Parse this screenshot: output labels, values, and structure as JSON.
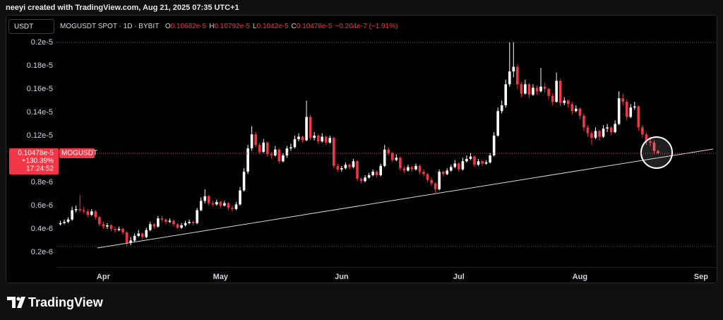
{
  "header": {
    "credit": "neeyi created with TradingView.com, Aug 21, 2025 07:35 UTC+1"
  },
  "footer": {
    "brand": "TradingView"
  },
  "chart_data": {
    "type": "candlestick",
    "currency": "USDT",
    "legend": {
      "symbol": "MOGUSDT SPOT · 1D · BYBIT",
      "items": [
        {
          "key": "O",
          "value": "0.10682e-5"
        },
        {
          "key": "H",
          "value": "0.10792e-5"
        },
        {
          "key": "L",
          "value": "0.1042e-5"
        },
        {
          "key": "C",
          "value": "0.10478e-5"
        }
      ],
      "change": "−0.204e-7 (−1.91%)"
    },
    "price_tag": {
      "price": "0.10478e-5",
      "change": "+130.39%",
      "countdown": "17:24:52",
      "symbol": "MOGUSDT"
    },
    "up_color": "#ffffff",
    "down_color": "#f23645",
    "xlim": [
      -1,
      168
    ],
    "xticks": [
      {
        "value": 11,
        "label": "Apr"
      },
      {
        "value": 41,
        "label": "May"
      },
      {
        "value": 72,
        "label": "Jun"
      },
      {
        "value": 102,
        "label": "Jul"
      },
      {
        "value": 133,
        "label": "Aug"
      },
      {
        "value": 164,
        "label": "Sep"
      }
    ],
    "ylim": [
      9.1e-08,
      2.09e-06
    ],
    "yticks": [
      {
        "value": 2e-06,
        "label": "0.2e-5"
      },
      {
        "value": 1.8e-06,
        "label": "0.18e-5"
      },
      {
        "value": 1.6e-06,
        "label": "0.16e-5"
      },
      {
        "value": 1.4e-06,
        "label": "0.14e-5"
      },
      {
        "value": 1.2e-06,
        "label": "0.12e-5"
      },
      {
        "value": 8e-07,
        "label": "0.8e-6"
      },
      {
        "value": 6e-07,
        "label": "0.6e-6"
      },
      {
        "value": 4e-07,
        "label": "0.4e-6"
      },
      {
        "value": 2e-07,
        "label": "0.2e-6"
      }
    ],
    "grid": false,
    "candles": [
      [
        4.4e-07,
        4.7e-07,
        4.3e-07,
        4.5e-07
      ],
      [
        4.5e-07,
        4.8e-07,
        4.4e-07,
        4.6e-07
      ],
      [
        4.6e-07,
        5e-07,
        4.5e-07,
        4.8e-07
      ],
      [
        4.8e-07,
        5.9e-07,
        4.7e-07,
        5.6e-07
      ],
      [
        5.6e-07,
        6e-07,
        5.4e-07,
        5.7e-07
      ],
      [
        5.7e-07,
        6.9e-07,
        5.4e-07,
        5.6e-07
      ],
      [
        5.6e-07,
        5.9e-07,
        5.3e-07,
        5.5e-07
      ],
      [
        5.5e-07,
        5.7e-07,
        5e-07,
        5.2e-07
      ],
      [
        5.2e-07,
        5.7e-07,
        5.1e-07,
        5.5e-07
      ],
      [
        5.5e-07,
        5.6e-07,
        4.8e-07,
        5e-07
      ],
      [
        5e-07,
        5.1e-07,
        4.2e-07,
        4.4e-07
      ],
      [
        4.4e-07,
        4.6e-07,
        4e-07,
        4.2e-07
      ],
      [
        4.2e-07,
        4.5e-07,
        4e-07,
        4.3e-07
      ],
      [
        4.3e-07,
        4.4e-07,
        3.8e-07,
        4e-07
      ],
      [
        4e-07,
        4.2e-07,
        3.7e-07,
        3.9e-07
      ],
      [
        3.9e-07,
        4.2e-07,
        3.8e-07,
        4e-07
      ],
      [
        4e-07,
        4.1e-07,
        3.5e-07,
        3.7e-07
      ],
      [
        3.7e-07,
        3.8e-07,
        2.5e-07,
        2.8e-07
      ],
      [
        2.8e-07,
        3.3e-07,
        2.6e-07,
        3e-07
      ],
      [
        3e-07,
        3.6e-07,
        2.9e-07,
        3.4e-07
      ],
      [
        3.4e-07,
        3.9e-07,
        3.3e-07,
        3.6e-07
      ],
      [
        3.6e-07,
        3.7e-07,
        3.1e-07,
        3.3e-07
      ],
      [
        3.3e-07,
        4.1e-07,
        3.2e-07,
        3.9e-07
      ],
      [
        3.9e-07,
        4.6e-07,
        3.8e-07,
        4.4e-07
      ],
      [
        4.4e-07,
        4.5e-07,
        4e-07,
        4.2e-07
      ],
      [
        4.2e-07,
        5.1e-07,
        4.1e-07,
        4.9e-07
      ],
      [
        4.9e-07,
        5.1e-07,
        4.6e-07,
        4.8e-07
      ],
      [
        4.8e-07,
        4.9e-07,
        4.4e-07,
        4.6e-07
      ],
      [
        4.6e-07,
        4.9e-07,
        4.5e-07,
        4.7e-07
      ],
      [
        4.7e-07,
        4.8e-07,
        4.2e-07,
        4.4e-07
      ],
      [
        4.4e-07,
        4.5e-07,
        4e-07,
        4.1e-07
      ],
      [
        4.1e-07,
        4.5e-07,
        4e-07,
        4.3e-07
      ],
      [
        4.3e-07,
        4.7e-07,
        4.2e-07,
        4.5e-07
      ],
      [
        4.5e-07,
        4.8e-07,
        4.4e-07,
        4.6e-07
      ],
      [
        4.6e-07,
        4.7e-07,
        4.3e-07,
        4.5e-07
      ],
      [
        4.5e-07,
        5.8e-07,
        4.4e-07,
        5.6e-07
      ],
      [
        5.6e-07,
        6.7e-07,
        5.5e-07,
        6.4e-07
      ],
      [
        6.4e-07,
        7.4e-07,
        6.2e-07,
        6.8e-07
      ],
      [
        6.8e-07,
        6.9e-07,
        6e-07,
        6.2e-07
      ],
      [
        6.2e-07,
        6.4e-07,
        5.9e-07,
        6.1e-07
      ],
      [
        6.1e-07,
        6.5e-07,
        6e-07,
        6.3e-07
      ],
      [
        6.3e-07,
        6.4e-07,
        5.8e-07,
        6e-07
      ],
      [
        6e-07,
        6.4e-07,
        5.9e-07,
        6.2e-07
      ],
      [
        6.2e-07,
        6.3e-07,
        5.6e-07,
        5.8e-07
      ],
      [
        5.8e-07,
        6e-07,
        5.5e-07,
        5.7e-07
      ],
      [
        5.7e-07,
        6.3e-07,
        5.6e-07,
        6.1e-07
      ],
      [
        6.1e-07,
        7.6e-07,
        6e-07,
        7.3e-07
      ],
      [
        7.3e-07,
        9.2e-07,
        7.2e-07,
        8.9e-07
      ],
      [
        8.9e-07,
        1.12e-06,
        8.7e-07,
        1.09e-06
      ],
      [
        1.09e-06,
        1.28e-06,
        1.07e-06,
        1.21e-06
      ],
      [
        1.21e-06,
        1.23e-06,
        1.1e-06,
        1.12e-06
      ],
      [
        1.12e-06,
        1.14e-06,
        1.04e-06,
        1.06e-06
      ],
      [
        1.06e-06,
        1.17e-06,
        1.05e-06,
        1.14e-06
      ],
      [
        1.14e-06,
        1.15e-06,
        1.02e-06,
        1.04e-06
      ],
      [
        1.04e-06,
        1.06e-06,
        1e-06,
        1.03e-06
      ],
      [
        1.03e-06,
        1.11e-06,
        1.02e-06,
        1.08e-06
      ],
      [
        1.08e-06,
        1.09e-06,
        9.6e-07,
        9.8e-07
      ],
      [
        9.8e-07,
        1.05e-06,
        9.7e-07,
        1.03e-06
      ],
      [
        1.03e-06,
        1.11e-06,
        1.01e-06,
        1.09e-06
      ],
      [
        1.09e-06,
        1.13e-06,
        1.07e-06,
        1.1e-06
      ],
      [
        1.1e-06,
        1.2e-06,
        1.09e-06,
        1.17e-06
      ],
      [
        1.17e-06,
        1.22e-06,
        1.15e-06,
        1.19e-06
      ],
      [
        1.19e-06,
        1.2e-06,
        1.14e-06,
        1.16e-06
      ],
      [
        1.16e-06,
        1.5e-06,
        1.15e-06,
        1.36e-06
      ],
      [
        1.36e-06,
        1.38e-06,
        1.16e-06,
        1.18e-06
      ],
      [
        1.18e-06,
        1.23e-06,
        1.16e-06,
        1.2e-06
      ],
      [
        1.2e-06,
        1.21e-06,
        1.13e-06,
        1.15e-06
      ],
      [
        1.15e-06,
        1.22e-06,
        1.14e-06,
        1.19e-06
      ],
      [
        1.19e-06,
        1.2e-06,
        1.12e-06,
        1.14e-06
      ],
      [
        1.14e-06,
        1.2e-06,
        1.13e-06,
        1.18e-06
      ],
      [
        1.18e-06,
        1.19e-06,
        9.2e-07,
        9.4e-07
      ],
      [
        9.4e-07,
        9.6e-07,
        8.9e-07,
        9.1e-07
      ],
      [
        9.1e-07,
        9.4e-07,
        8.9e-07,
        9.2e-07
      ],
      [
        9.2e-07,
        9.7e-07,
        9.1e-07,
        9.5e-07
      ],
      [
        9.5e-07,
        9.6e-07,
        9.1e-07,
        9.3e-07
      ],
      [
        9.3e-07,
        1e-06,
        9.2e-07,
        9.8e-07
      ],
      [
        9.8e-07,
        9.9e-07,
        8.1e-07,
        8.3e-07
      ],
      [
        8.3e-07,
        8.4e-07,
        7.9e-07,
        8.1e-07
      ],
      [
        8.1e-07,
        8.6e-07,
        8e-07,
        8.4e-07
      ],
      [
        8.4e-07,
        8.8e-07,
        8.3e-07,
        8.6e-07
      ],
      [
        8.6e-07,
        9.1e-07,
        8.5e-07,
        8.9e-07
      ],
      [
        8.9e-07,
        9e-07,
        8.4e-07,
        8.6e-07
      ],
      [
        8.6e-07,
        9.6e-07,
        8.5e-07,
        9.4e-07
      ],
      [
        9.4e-07,
        1.12e-06,
        9.3e-07,
        1.08e-06
      ],
      [
        1.08e-06,
        1.1e-06,
        1.03e-06,
        1.05e-06
      ],
      [
        1.05e-06,
        1.06e-06,
        9.7e-07,
        9.9e-07
      ],
      [
        9.9e-07,
        1.04e-06,
        9.8e-07,
        1.01e-06
      ],
      [
        1.01e-06,
        1.02e-06,
        9e-07,
        9.2e-07
      ],
      [
        9.2e-07,
        9.4e-07,
        8.8e-07,
        9e-07
      ],
      [
        9e-07,
        9.5e-07,
        8.9e-07,
        9.3e-07
      ],
      [
        9.3e-07,
        9.4e-07,
        8.9e-07,
        9.1e-07
      ],
      [
        9.1e-07,
        9.6e-07,
        9e-07,
        9.4e-07
      ],
      [
        9.4e-07,
        9.5e-07,
        8.7e-07,
        8.9e-07
      ],
      [
        8.9e-07,
        9.1e-07,
        8.5e-07,
        8.7e-07
      ],
      [
        8.7e-07,
        8.8e-07,
        8e-07,
        8.2e-07
      ],
      [
        8.2e-07,
        8.4e-07,
        7.7e-07,
        7.9e-07
      ],
      [
        7.9e-07,
        8e-07,
        7.1e-07,
        7.4e-07
      ],
      [
        7.4e-07,
        9.1e-07,
        7.3e-07,
        8.9e-07
      ],
      [
        8.9e-07,
        9e-07,
        8.5e-07,
        8.7e-07
      ],
      [
        8.7e-07,
        9.2e-07,
        8.6e-07,
        9e-07
      ],
      [
        9e-07,
        9.5e-07,
        8.9e-07,
        9.3e-07
      ],
      [
        9.3e-07,
        9.9e-07,
        9.2e-07,
        9.6e-07
      ],
      [
        9.6e-07,
        9.7e-07,
        8.9e-07,
        9.1e-07
      ],
      [
        9.1e-07,
        1.01e-06,
        9e-07,
        9.8e-07
      ],
      [
        9.8e-07,
        1.03e-06,
        9.7e-07,
        1e-06
      ],
      [
        1e-06,
        1.05e-06,
        9.9e-07,
        1.02e-06
      ],
      [
        1.02e-06,
        1.03e-06,
        9.3e-07,
        9.5e-07
      ],
      [
        9.5e-07,
        1e-06,
        9.4e-07,
        9.8e-07
      ],
      [
        9.8e-07,
        9.9e-07,
        9.4e-07,
        9.6e-07
      ],
      [
        9.6e-07,
        9.9e-07,
        9.5e-07,
        9.7e-07
      ],
      [
        9.7e-07,
        1.05e-06,
        9.6e-07,
        1.03e-06
      ],
      [
        1.03e-06,
        1.23e-06,
        1.02e-06,
        1.2e-06
      ],
      [
        1.2e-06,
        1.44e-06,
        1.19e-06,
        1.41e-06
      ],
      [
        1.41e-06,
        1.5e-06,
        1.39e-06,
        1.46e-06
      ],
      [
        1.46e-06,
        1.68e-06,
        1.44e-06,
        1.64e-06
      ],
      [
        1.64e-06,
        2e-06,
        1.62e-06,
        1.75e-06
      ],
      [
        1.75e-06,
        2e-06,
        1.7e-06,
        1.79e-06
      ],
      [
        1.79e-06,
        1.81e-06,
        1.6e-06,
        1.64e-06
      ],
      [
        1.64e-06,
        1.66e-06,
        1.53e-06,
        1.56e-06
      ],
      [
        1.56e-06,
        1.68e-06,
        1.55e-06,
        1.64e-06
      ],
      [
        1.64e-06,
        1.65e-06,
        1.52e-06,
        1.55e-06
      ],
      [
        1.55e-06,
        1.64e-06,
        1.54e-06,
        1.61e-06
      ],
      [
        1.61e-06,
        1.63e-06,
        1.55e-06,
        1.58e-06
      ],
      [
        1.58e-06,
        1.78e-06,
        1.57e-06,
        1.62e-06
      ],
      [
        1.62e-06,
        1.65e-06,
        1.57e-06,
        1.6e-06
      ],
      [
        1.6e-06,
        1.61e-06,
        1.51e-06,
        1.54e-06
      ],
      [
        1.54e-06,
        1.56e-06,
        1.46e-06,
        1.49e-06
      ],
      [
        1.49e-06,
        1.74e-06,
        1.48e-06,
        1.67e-06
      ],
      [
        1.67e-06,
        1.69e-06,
        1.45e-06,
        1.48e-06
      ],
      [
        1.48e-06,
        1.53e-06,
        1.46e-06,
        1.5e-06
      ],
      [
        1.5e-06,
        1.51e-06,
        1.44e-06,
        1.47e-06
      ],
      [
        1.47e-06,
        1.49e-06,
        1.38e-06,
        1.41e-06
      ],
      [
        1.41e-06,
        1.46e-06,
        1.4e-06,
        1.43e-06
      ],
      [
        1.43e-06,
        1.44e-06,
        1.34e-06,
        1.37e-06
      ],
      [
        1.37e-06,
        1.39e-06,
        1.24e-06,
        1.27e-06
      ],
      [
        1.27e-06,
        1.29e-06,
        1.19e-06,
        1.22e-06
      ],
      [
        1.22e-06,
        1.24e-06,
        1.12e-06,
        1.18e-06
      ],
      [
        1.18e-06,
        1.27e-06,
        1.17e-06,
        1.24e-06
      ],
      [
        1.24e-06,
        1.25e-06,
        1.16e-06,
        1.19e-06
      ],
      [
        1.19e-06,
        1.29e-06,
        1.18e-06,
        1.26e-06
      ],
      [
        1.26e-06,
        1.3e-06,
        1.23e-06,
        1.27e-06
      ],
      [
        1.27e-06,
        1.28e-06,
        1.2e-06,
        1.23e-06
      ],
      [
        1.23e-06,
        1.33e-06,
        1.22e-06,
        1.3e-06
      ],
      [
        1.3e-06,
        1.58e-06,
        1.29e-06,
        1.52e-06
      ],
      [
        1.52e-06,
        1.56e-06,
        1.46e-06,
        1.49e-06
      ],
      [
        1.49e-06,
        1.51e-06,
        1.33e-06,
        1.36e-06
      ],
      [
        1.36e-06,
        1.47e-06,
        1.35e-06,
        1.44e-06
      ],
      [
        1.44e-06,
        1.49e-06,
        1.42e-06,
        1.45e-06
      ],
      [
        1.45e-06,
        1.46e-06,
        1.24e-06,
        1.27e-06
      ],
      [
        1.27e-06,
        1.29e-06,
        1.18e-06,
        1.21e-06
      ],
      [
        1.21e-06,
        1.23e-06,
        1.12e-06,
        1.15e-06
      ],
      [
        1.15e-06,
        1.19e-06,
        1.11e-06,
        1.14e-06
      ],
      [
        1.14e-06,
        1.16e-06,
        1.04e-06,
        1.0682e-06
      ],
      [
        1.0682e-06,
        1.0792e-06,
        1.042e-06,
        1.0478e-06
      ]
    ]
  }
}
